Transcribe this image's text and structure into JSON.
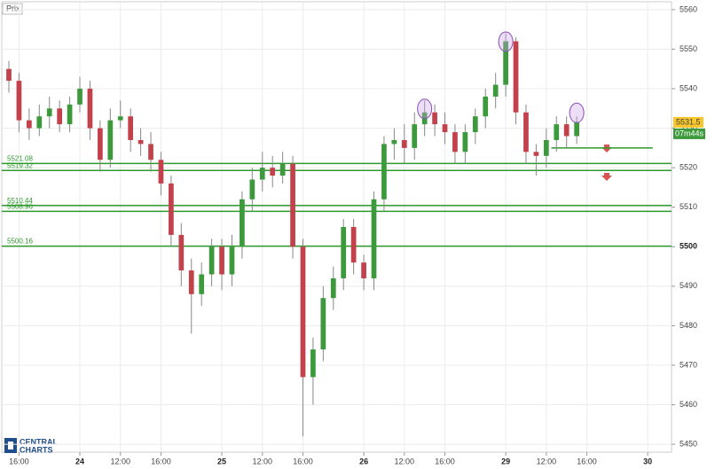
{
  "chart_data": {
    "type": "candlestick",
    "legend_label": "Prix",
    "x": [
      -7,
      -6,
      -5,
      -4,
      -3,
      -2,
      -1,
      0,
      1,
      2,
      3,
      4,
      5,
      6,
      7,
      8,
      9,
      10,
      11,
      12,
      13,
      14,
      15,
      16,
      17,
      18,
      19,
      20,
      21,
      22,
      23,
      24,
      25,
      26,
      27,
      28,
      29,
      30,
      31,
      32,
      33,
      34,
      35,
      36,
      37,
      38,
      39,
      40,
      41,
      42,
      43,
      44,
      45,
      46,
      47,
      48,
      49
    ],
    "open": [
      5545,
      5542,
      5532,
      5530,
      5533,
      5535,
      5531,
      5536,
      5540,
      5530,
      5522,
      5532,
      5533,
      5527,
      5526,
      5522,
      5516,
      5503,
      5494,
      5488,
      5493,
      5500,
      5493,
      5500,
      5512,
      5517,
      5520,
      5518,
      5521,
      5500,
      5467,
      5474,
      5487,
      5492,
      5505,
      5496,
      5492,
      5512,
      5526,
      5527,
      5525,
      5531,
      5534,
      5531,
      5529,
      5524,
      5529,
      5533,
      5538,
      5541,
      5552,
      5534,
      5524,
      5523,
      5527,
      5531,
      5528
    ],
    "high": [
      5547,
      5544,
      5535,
      5536,
      5538,
      5537,
      5538,
      5543,
      5542,
      5532,
      5535,
      5537,
      5535,
      5530,
      5529,
      5524,
      5518,
      5506,
      5497,
      5496,
      5502,
      5502,
      5503,
      5514,
      5520,
      5524,
      5523,
      5524,
      5523,
      5502,
      5477,
      5490,
      5495,
      5507,
      5507,
      5498,
      5514,
      5528,
      5530,
      5531,
      5534,
      5537,
      5536,
      5534,
      5531,
      5531,
      5535,
      5540,
      5544,
      5554,
      5553,
      5536,
      5526,
      5530,
      5533,
      5533,
      5533
    ],
    "low": [
      5539,
      5529,
      5527,
      5528,
      5530,
      5529,
      5529,
      5534,
      5527,
      5519,
      5520,
      5530,
      5524,
      5523,
      5519,
      5513,
      5500,
      5490,
      5478,
      5485,
      5490,
      5489,
      5490,
      5497,
      5509,
      5514,
      5515,
      5516,
      5497,
      5452,
      5460,
      5471,
      5484,
      5489,
      5493,
      5489,
      5489,
      5509,
      5522,
      5521,
      5522,
      5528,
      5528,
      5526,
      5521,
      5521,
      5526,
      5530,
      5535,
      5538,
      5531,
      5521,
      5518,
      5520,
      5524,
      5525,
      5526
    ],
    "close": [
      5542,
      5532,
      5530,
      5533,
      5535,
      5531,
      5536,
      5540,
      5530,
      5522,
      5532,
      5533,
      5527,
      5526,
      5522,
      5516,
      5503,
      5494,
      5488,
      5493,
      5500,
      5493,
      5500,
      5512,
      5517,
      5520,
      5518,
      5521,
      5500,
      5467,
      5474,
      5487,
      5492,
      5505,
      5496,
      5492,
      5512,
      5526,
      5527,
      5525,
      5531,
      5534,
      5531,
      5529,
      5524,
      5529,
      5533,
      5538,
      5541,
      5552,
      5534,
      5524,
      5523,
      5527,
      5531,
      5528,
      5531.5
    ],
    "up_color": "#3c9a3c",
    "down_color": "#c2414b",
    "xlim": [
      -7.7,
      58.35
    ],
    "xticks": [
      {
        "value": -6,
        "label": "16:00"
      },
      {
        "value": 0,
        "label": "24"
      },
      {
        "value": 4,
        "label": "12:00"
      },
      {
        "value": 8,
        "label": "16:00"
      },
      {
        "value": 14,
        "label": "25"
      },
      {
        "value": 18,
        "label": "12:00"
      },
      {
        "value": 22,
        "label": "16:00"
      },
      {
        "value": 28,
        "label": "26"
      },
      {
        "value": 32,
        "label": "12:00"
      },
      {
        "value": 36,
        "label": "16:00"
      },
      {
        "value": 42,
        "label": "29"
      },
      {
        "value": 46,
        "label": "12:00"
      },
      {
        "value": 50,
        "label": "16:00"
      },
      {
        "value": 56,
        "label": "30"
      }
    ],
    "ylim": [
      5448,
      5562
    ],
    "yticks": [
      5450,
      5460,
      5470,
      5480,
      5490,
      5500,
      5510,
      5520,
      5530,
      5540,
      5550,
      5560
    ],
    "grid": true,
    "levels": [
      5521.08,
      5519.32,
      5510.44,
      5508.96,
      5500.16
    ],
    "level_color": "#2e9a2e",
    "target_level": 5525,
    "last_price": 5531.5,
    "countdown": "07m44s",
    "logo": [
      "CENTRAL",
      "CHARTS"
    ]
  }
}
